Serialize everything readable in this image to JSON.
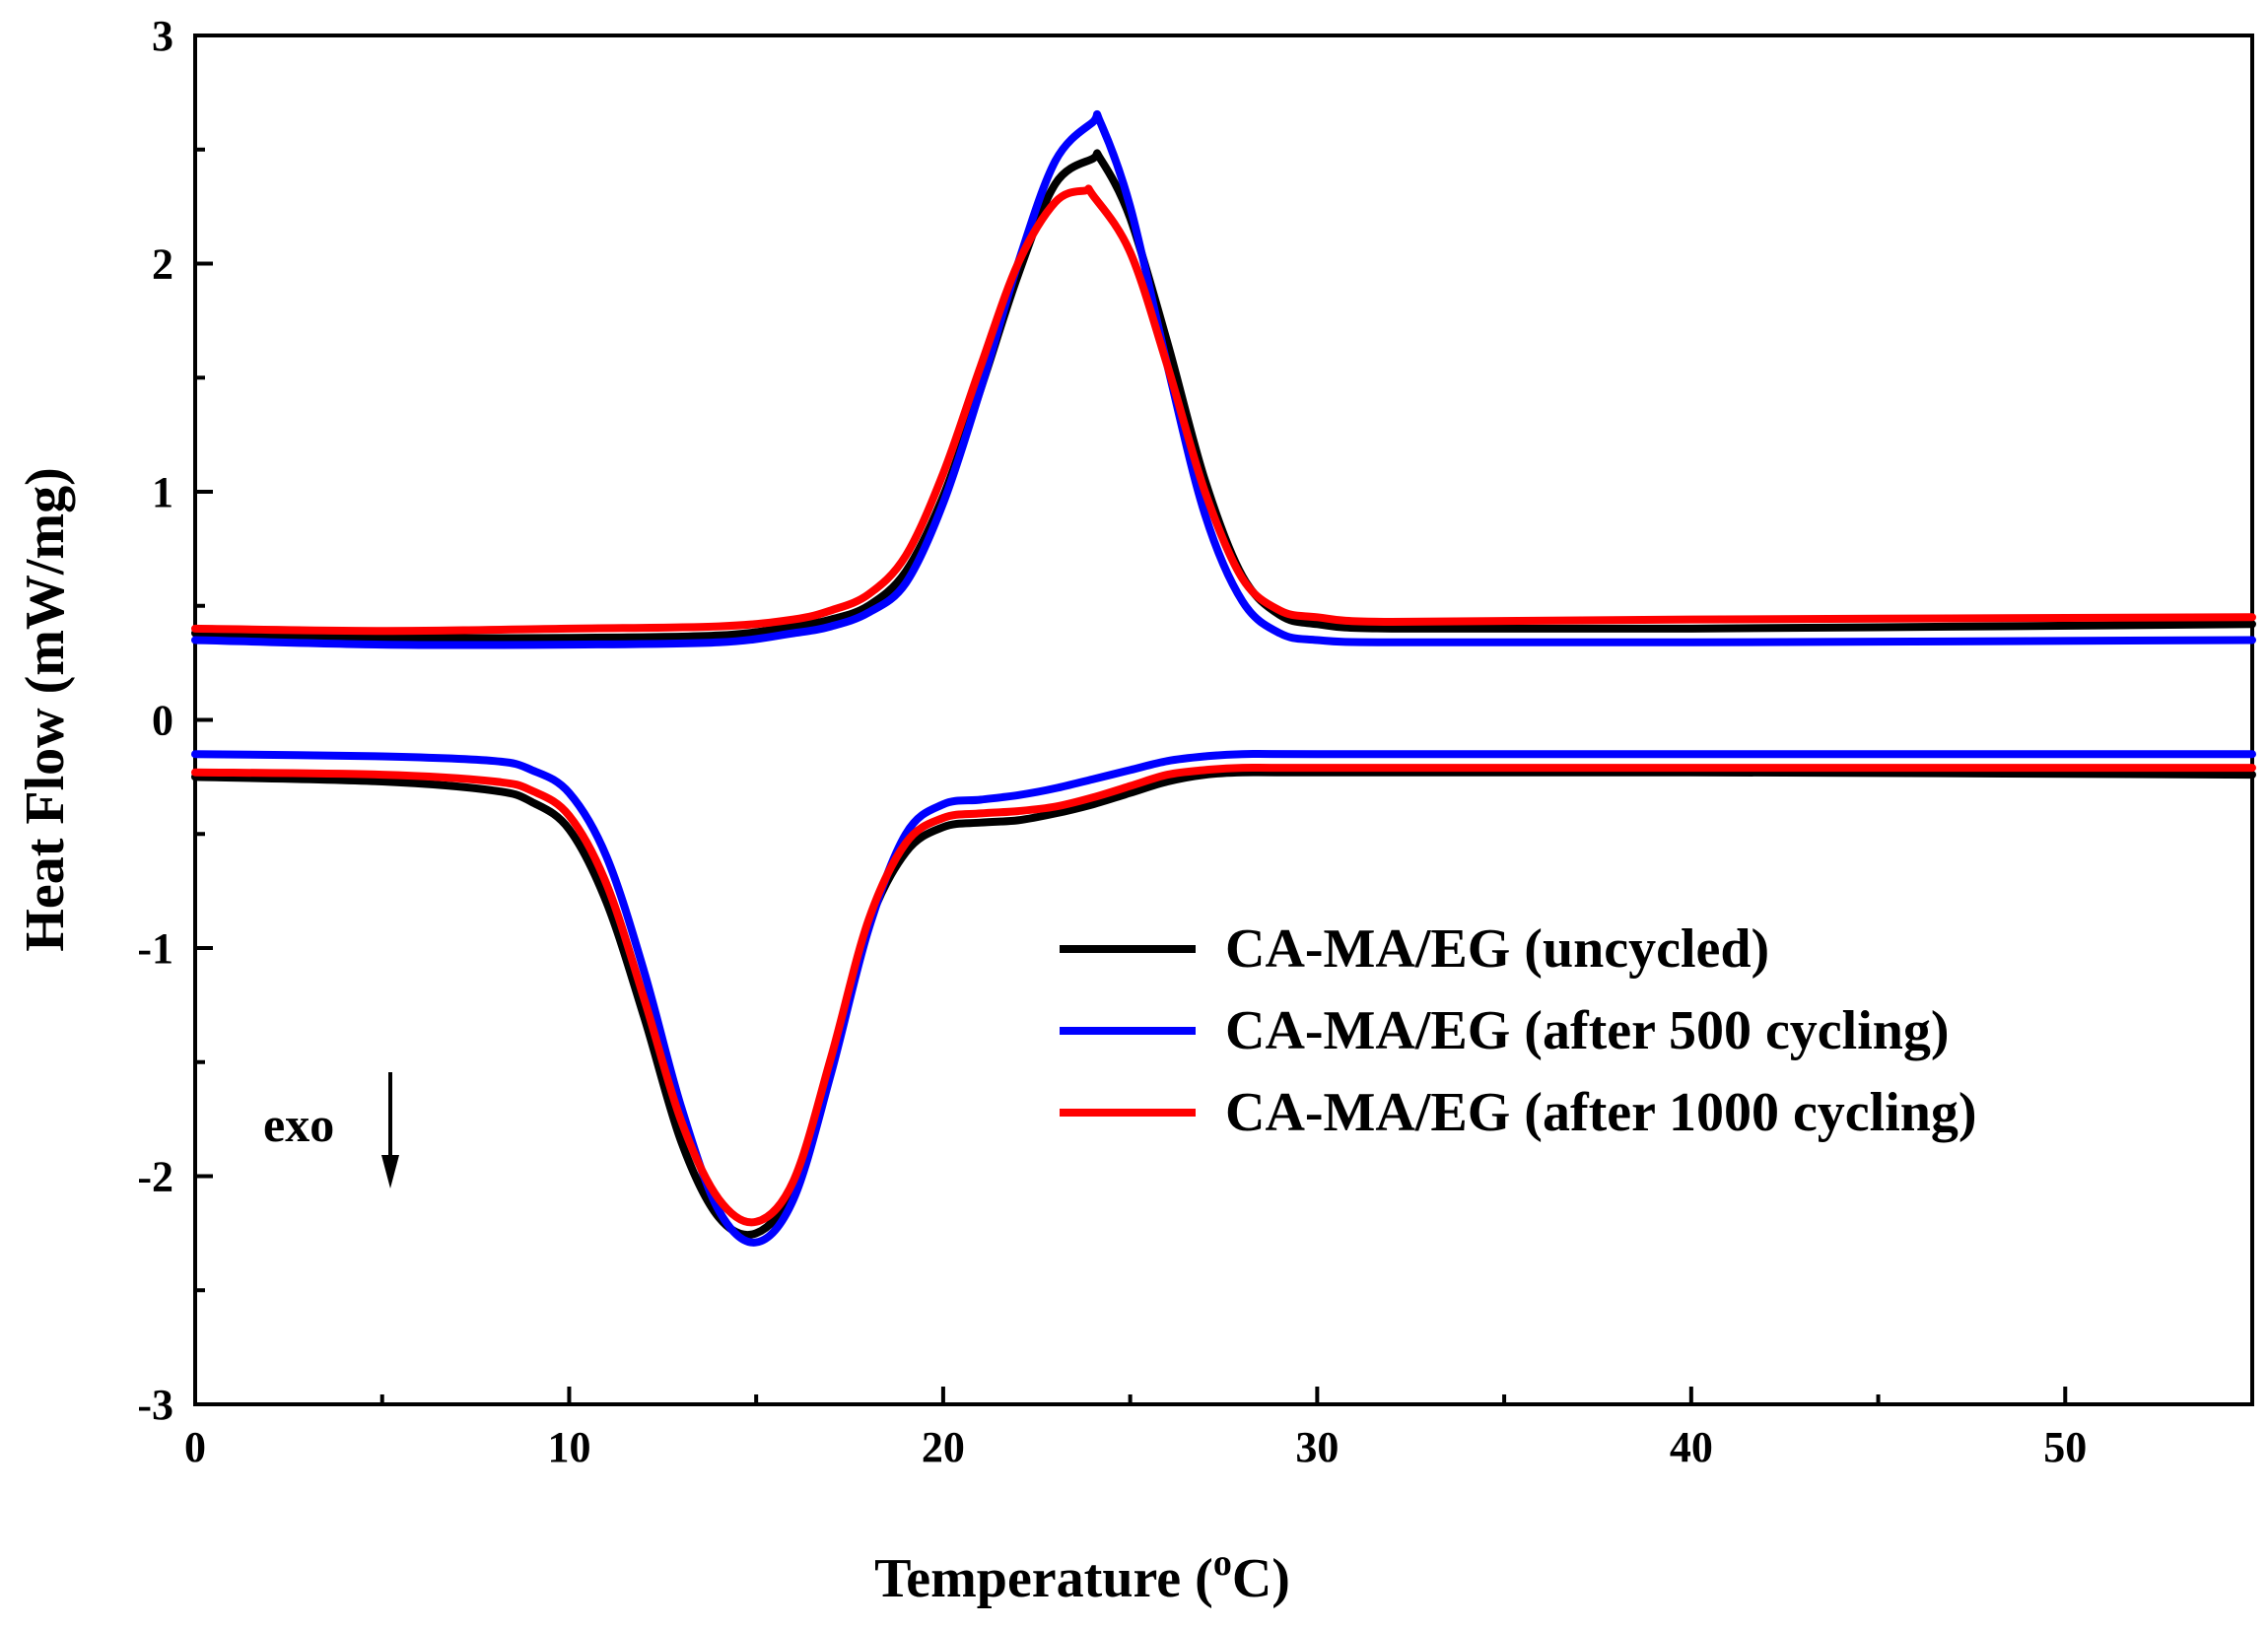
{
  "chart_data": {
    "type": "line",
    "title": "",
    "xlabel": "Temperature (",
    "xlabel_sup": "o",
    "xlabel_unit": "C)",
    "ylabel": "Heat Flow (mW/mg)",
    "xlim": [
      0,
      55
    ],
    "ylim": [
      -3,
      3
    ],
    "xticks": [
      0,
      10,
      20,
      30,
      40,
      50
    ],
    "yticks": [
      -3,
      -2,
      -1,
      0,
      1,
      2,
      3
    ],
    "legend_position": "center-right",
    "annotation": "exo",
    "series": [
      {
        "name": "CA-MA/EG (uncycled)",
        "color": "#000000",
        "segments": [
          {
            "x": [
              0,
              5,
              10,
              14,
              16,
              17,
              18,
              19,
              20,
              21,
              22,
              23,
              24,
              24.2,
              25,
              26,
              27,
              28,
              29,
              30,
              32,
              40,
              55
            ],
            "y": [
              0.38,
              0.36,
              0.36,
              0.37,
              0.41,
              0.44,
              0.5,
              0.65,
              0.98,
              1.45,
              1.95,
              2.35,
              2.46,
              2.46,
              2.2,
              1.65,
              1.05,
              0.63,
              0.46,
              0.42,
              0.4,
              0.4,
              0.42
            ]
          },
          {
            "x": [
              0,
              5,
              8,
              9,
              10,
              11,
              12,
              13,
              14,
              15,
              16,
              17,
              18,
              19,
              20,
              21,
              22,
              23,
              24,
              25,
              26,
              27,
              28,
              30,
              40,
              55
            ],
            "y": [
              -0.25,
              -0.27,
              -0.31,
              -0.36,
              -0.48,
              -0.8,
              -1.3,
              -1.85,
              -2.18,
              -2.25,
              -2.05,
              -1.5,
              -0.9,
              -0.58,
              -0.47,
              -0.45,
              -0.44,
              -0.41,
              -0.37,
              -0.32,
              -0.27,
              -0.24,
              -0.23,
              -0.23,
              -0.23,
              -0.24
            ]
          }
        ]
      },
      {
        "name": "CA-MA/EG (after 500 cycling)",
        "color": "#0000ff",
        "segments": [
          {
            "x": [
              0,
              5,
              10,
              14,
              16,
              17,
              18,
              19,
              20,
              21,
              22,
              23,
              24,
              24.2,
              25,
              26,
              27,
              28,
              29,
              30,
              32,
              40,
              55
            ],
            "y": [
              0.35,
              0.33,
              0.33,
              0.34,
              0.38,
              0.41,
              0.47,
              0.6,
              0.95,
              1.45,
              2.0,
              2.45,
              2.62,
              2.62,
              2.25,
              1.55,
              0.9,
              0.52,
              0.38,
              0.35,
              0.34,
              0.34,
              0.35
            ]
          },
          {
            "x": [
              0,
              5,
              8,
              9,
              10,
              11,
              12,
              13,
              14,
              15,
              16,
              17,
              18,
              19,
              20,
              21,
              22,
              23,
              24,
              25,
              26,
              27,
              28,
              30,
              40,
              55
            ],
            "y": [
              -0.15,
              -0.16,
              -0.18,
              -0.22,
              -0.32,
              -0.6,
              -1.1,
              -1.7,
              -2.15,
              -2.29,
              -2.1,
              -1.55,
              -0.92,
              -0.5,
              -0.37,
              -0.35,
              -0.33,
              -0.3,
              -0.26,
              -0.22,
              -0.18,
              -0.16,
              -0.15,
              -0.15,
              -0.15,
              -0.15
            ]
          }
        ]
      },
      {
        "name": "CA-MA/EG (after 1000 cycling)",
        "color": "#ff0000",
        "segments": [
          {
            "x": [
              0,
              5,
              10,
              14,
              16,
              17,
              18,
              19,
              20,
              21,
              22,
              23,
              23.8,
              24,
              25,
              26,
              27,
              28,
              29,
              30,
              32,
              40,
              55
            ],
            "y": [
              0.4,
              0.39,
              0.4,
              0.41,
              0.44,
              0.48,
              0.55,
              0.72,
              1.08,
              1.55,
              2.0,
              2.27,
              2.32,
              2.3,
              2.05,
              1.55,
              1.0,
              0.62,
              0.48,
              0.45,
              0.43,
              0.44,
              0.45
            ]
          },
          {
            "x": [
              0,
              5,
              8,
              9,
              10,
              11,
              12,
              13,
              14,
              15,
              16,
              17,
              18,
              19,
              20,
              21,
              22,
              23,
              24,
              25,
              26,
              27,
              28,
              30,
              40,
              55
            ],
            "y": [
              -0.23,
              -0.24,
              -0.27,
              -0.31,
              -0.42,
              -0.72,
              -1.22,
              -1.76,
              -2.1,
              -2.2,
              -2.02,
              -1.48,
              -0.88,
              -0.54,
              -0.43,
              -0.41,
              -0.4,
              -0.38,
              -0.34,
              -0.29,
              -0.24,
              -0.22,
              -0.21,
              -0.21,
              -0.21,
              -0.21
            ]
          }
        ]
      }
    ]
  }
}
